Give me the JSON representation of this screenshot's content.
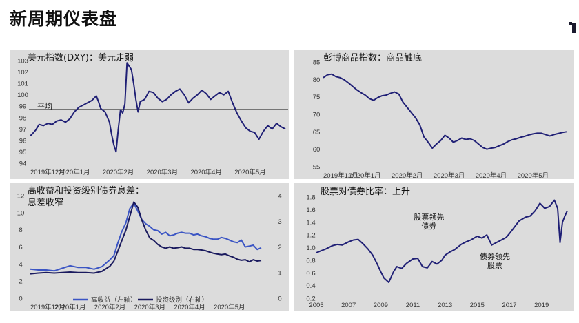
{
  "page": {
    "title": "新周期仪表盘"
  },
  "chart_data": [
    {
      "type": "line",
      "title": "美元指数(DXY)：美元走弱",
      "reference_line": {
        "label": "平均",
        "value": 98.7
      },
      "ylim": [
        94,
        103
      ],
      "yticks": [
        "94",
        "95",
        "96",
        "97",
        "98",
        "99",
        "100",
        "101",
        "102",
        "103"
      ],
      "xlabels": [
        "2019年12月",
        "2020年1月",
        "2020年2月",
        "2020年3月",
        "2020年4月",
        "2020年5月"
      ],
      "xlabel_positions": [
        0,
        1,
        2,
        3,
        4,
        5
      ],
      "series": [
        {
          "color": "#1f1f75",
          "x": [
            0,
            0.05,
            0.12,
            0.2,
            0.3,
            0.4,
            0.5,
            0.6,
            0.7,
            0.8,
            0.9,
            1.0,
            1.1,
            1.2,
            1.3,
            1.4,
            1.5,
            1.55,
            1.6,
            1.7,
            1.8,
            1.85,
            1.9,
            1.95,
            2.0,
            2.05,
            2.1,
            2.15,
            2.2,
            2.25,
            2.3,
            2.35,
            2.4,
            2.45,
            2.5,
            2.6,
            2.7,
            2.8,
            2.9,
            3.0,
            3.1,
            3.2,
            3.3,
            3.4,
            3.5,
            3.6,
            3.7,
            3.8,
            3.9,
            4.0,
            4.1,
            4.2,
            4.3,
            4.4,
            4.5,
            4.6,
            4.7,
            4.8,
            4.9,
            5.0,
            5.1,
            5.2,
            5.3,
            5.4,
            5.5,
            5.6,
            5.7,
            5.8
          ],
          "y": [
            96.4,
            96.6,
            96.9,
            97.4,
            97.3,
            97.5,
            97.4,
            97.7,
            97.8,
            97.6,
            97.9,
            98.5,
            98.9,
            99.1,
            99.3,
            99.5,
            99.9,
            99.4,
            98.8,
            98.5,
            97.6,
            96.5,
            95.6,
            95.0,
            97.0,
            98.7,
            98.4,
            99.2,
            102.8,
            102.5,
            102.2,
            101.0,
            99.6,
            98.5,
            99.4,
            99.6,
            100.3,
            100.2,
            99.7,
            99.4,
            99.6,
            100.0,
            100.3,
            100.5,
            100.0,
            99.3,
            99.7,
            100.0,
            100.4,
            100.1,
            99.6,
            99.9,
            100.2,
            100.0,
            100.3,
            99.3,
            98.4,
            97.7,
            97.1,
            96.8,
            96.7,
            96.1,
            96.8,
            97.3,
            97.0,
            97.5,
            97.2,
            97.0
          ]
        }
      ]
    },
    {
      "type": "line",
      "title": "彭博商品指数：商品触底",
      "ylim": [
        55,
        85
      ],
      "yticks": [
        "55",
        "60",
        "65",
        "70",
        "75",
        "80",
        "85"
      ],
      "xlabels": [
        "2019年12月",
        "2020年1月",
        "2020年2月",
        "2020年3月",
        "2020年4月",
        "2020年5月"
      ],
      "xlabel_positions": [
        0,
        1,
        2,
        3,
        4,
        5
      ],
      "series": [
        {
          "color": "#1f1f75",
          "x": [
            0,
            0.1,
            0.2,
            0.3,
            0.4,
            0.5,
            0.6,
            0.7,
            0.8,
            0.9,
            1.0,
            1.1,
            1.2,
            1.3,
            1.4,
            1.5,
            1.6,
            1.7,
            1.8,
            1.9,
            2.0,
            2.1,
            2.2,
            2.3,
            2.4,
            2.5,
            2.6,
            2.7,
            2.8,
            2.9,
            3.0,
            3.1,
            3.2,
            3.3,
            3.4,
            3.5,
            3.6,
            3.7,
            3.8,
            3.9,
            4.0,
            4.1,
            4.2,
            4.3,
            4.4,
            4.5,
            4.6,
            4.7,
            4.8,
            4.9,
            5.0,
            5.1,
            5.2,
            5.3,
            5.4,
            5.5,
            5.6,
            5.7,
            5.8
          ],
          "y": [
            80.5,
            81.3,
            81.5,
            80.8,
            80.5,
            79.9,
            79.0,
            78.0,
            77.0,
            76.2,
            75.5,
            74.5,
            74.0,
            74.8,
            75.3,
            75.5,
            76.0,
            76.4,
            75.8,
            73.5,
            72.0,
            70.5,
            69.0,
            67.0,
            63.5,
            62.0,
            60.3,
            61.5,
            62.5,
            64.0,
            63.2,
            62.0,
            62.5,
            63.2,
            62.8,
            63.0,
            62.5,
            61.5,
            60.5,
            60.0,
            60.3,
            60.5,
            61.0,
            61.5,
            62.2,
            62.7,
            63.0,
            63.4,
            63.7,
            64.1,
            64.4,
            64.6,
            64.6,
            64.2,
            63.8,
            64.2,
            64.5,
            64.8,
            65.0
          ]
        }
      ]
    },
    {
      "type": "line",
      "title": "高收益和投资级别债券息差：",
      "title_line2": "息差收窄",
      "ylim_left": [
        0,
        12
      ],
      "yticks_left": [
        "0",
        "2",
        "4",
        "6",
        "8",
        "10",
        "12"
      ],
      "ylim_right": [
        0,
        4
      ],
      "yticks_right": [
        "0",
        "1",
        "2",
        "3",
        "4"
      ],
      "xlabels": [
        "2019年12月",
        "2020年1月",
        "2020年2月",
        "2020年3月",
        "2020年4月",
        "2020年5月"
      ],
      "xlabel_positions": [
        0,
        1,
        2,
        3,
        4,
        5
      ],
      "series": [
        {
          "name": "高收益（左轴）",
          "axis": "left",
          "color": "#3b55c4",
          "x": [
            0,
            0.2,
            0.4,
            0.6,
            0.8,
            1.0,
            1.2,
            1.4,
            1.6,
            1.8,
            2.0,
            2.1,
            2.2,
            2.3,
            2.4,
            2.5,
            2.6,
            2.7,
            2.8,
            2.9,
            3.0,
            3.1,
            3.2,
            3.3,
            3.4,
            3.5,
            3.6,
            3.7,
            3.8,
            3.9,
            4.0,
            4.1,
            4.2,
            4.3,
            4.4,
            4.5,
            4.6,
            4.7,
            4.8,
            4.9,
            5.0,
            5.1,
            5.2,
            5.3,
            5.4,
            5.5,
            5.6,
            5.7,
            5.8
          ],
          "y": [
            3.4,
            3.3,
            3.3,
            3.2,
            3.5,
            3.8,
            3.6,
            3.6,
            3.4,
            3.7,
            4.5,
            5.0,
            6.5,
            7.8,
            8.8,
            10.5,
            11.1,
            10.2,
            9.2,
            8.7,
            8.4,
            8.0,
            7.9,
            7.5,
            7.7,
            7.3,
            7.4,
            7.6,
            7.7,
            7.6,
            7.6,
            7.4,
            7.5,
            7.3,
            7.2,
            7.0,
            6.9,
            6.9,
            7.1,
            7.0,
            6.8,
            6.6,
            6.5,
            6.8,
            6.0,
            6.1,
            6.2,
            5.7,
            5.9
          ]
        },
        {
          "name": "投资级别（右轴）",
          "axis": "right",
          "color": "#1a1a5e",
          "x": [
            0,
            0.2,
            0.4,
            0.6,
            0.8,
            1.0,
            1.2,
            1.4,
            1.6,
            1.8,
            2.0,
            2.1,
            2.2,
            2.3,
            2.4,
            2.5,
            2.6,
            2.7,
            2.8,
            2.9,
            3.0,
            3.1,
            3.2,
            3.3,
            3.4,
            3.5,
            3.6,
            3.7,
            3.8,
            3.9,
            4.0,
            4.1,
            4.2,
            4.3,
            4.4,
            4.5,
            4.6,
            4.7,
            4.8,
            4.9,
            5.0,
            5.1,
            5.2,
            5.3,
            5.4,
            5.5,
            5.6,
            5.7,
            5.8
          ],
          "y": [
            0.95,
            0.98,
            1.0,
            0.98,
            1.0,
            1.02,
            1.0,
            1.0,
            0.98,
            1.05,
            1.25,
            1.45,
            1.85,
            2.25,
            2.65,
            3.2,
            3.75,
            3.55,
            3.05,
            2.65,
            2.35,
            2.25,
            2.1,
            2.0,
            1.95,
            2.0,
            1.95,
            1.97,
            2.0,
            1.95,
            1.95,
            1.9,
            1.9,
            1.88,
            1.85,
            1.8,
            1.75,
            1.72,
            1.7,
            1.72,
            1.65,
            1.6,
            1.52,
            1.48,
            1.5,
            1.42,
            1.5,
            1.45,
            1.47
          ]
        }
      ]
    },
    {
      "type": "line",
      "title": "股票对债券比率：上升",
      "ylim": [
        0.2,
        1.8
      ],
      "yticks": [
        "0.2",
        "0.4",
        "0.6",
        "0.8",
        "1.0",
        "1.2",
        "1.4",
        "1.6",
        "1.8"
      ],
      "xlabels": [
        "2005",
        "2007",
        "2009",
        "2011",
        "2013",
        "2015",
        "2017",
        "2019"
      ],
      "xlabel_positions": [
        2005,
        2007,
        2009,
        2011,
        2013,
        2015,
        2017,
        2019
      ],
      "annotations": [
        {
          "text": "股票领先",
          "x": 2012.0,
          "y": 1.44
        },
        {
          "text": "债券",
          "x": 2012.0,
          "y": 1.3
        },
        {
          "text": "债券领先",
          "x": 2016.1,
          "y": 0.82
        },
        {
          "text": "股票",
          "x": 2016.1,
          "y": 0.68
        }
      ],
      "series": [
        {
          "color": "#1f1f75",
          "x": [
            2005,
            2005.3,
            2005.6,
            2006,
            2006.3,
            2006.6,
            2007,
            2007.3,
            2007.6,
            2007.9,
            2008.2,
            2008.5,
            2008.8,
            2009,
            2009.2,
            2009.5,
            2009.8,
            2010,
            2010.3,
            2010.6,
            2011,
            2011.3,
            2011.6,
            2011.9,
            2012.2,
            2012.5,
            2012.8,
            2013,
            2013.3,
            2013.6,
            2014,
            2014.3,
            2014.6,
            2015,
            2015.3,
            2015.6,
            2015.9,
            2016.2,
            2016.5,
            2016.8,
            2017,
            2017.3,
            2017.6,
            2018,
            2018.3,
            2018.6,
            2018.9,
            2019.2,
            2019.5,
            2019.8,
            2020,
            2020.15,
            2020.3,
            2020.45,
            2020.6
          ],
          "y": [
            0.92,
            0.95,
            0.98,
            1.03,
            1.05,
            1.04,
            1.09,
            1.12,
            1.13,
            1.06,
            0.98,
            0.88,
            0.73,
            0.62,
            0.52,
            0.45,
            0.62,
            0.7,
            0.67,
            0.75,
            0.82,
            0.83,
            0.7,
            0.68,
            0.78,
            0.74,
            0.8,
            0.88,
            0.93,
            0.97,
            1.05,
            1.09,
            1.12,
            1.18,
            1.15,
            1.2,
            1.04,
            1.08,
            1.12,
            1.16,
            1.22,
            1.32,
            1.42,
            1.48,
            1.5,
            1.58,
            1.7,
            1.62,
            1.65,
            1.75,
            1.62,
            1.08,
            1.4,
            1.5,
            1.58
          ]
        }
      ]
    }
  ]
}
